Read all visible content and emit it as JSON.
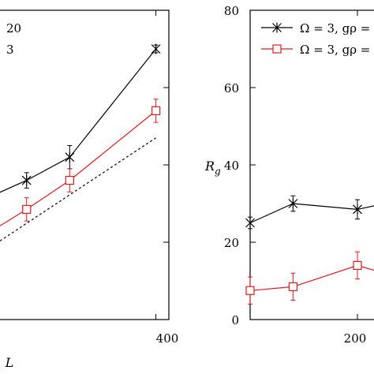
{
  "chart_data": [
    {
      "type": "line",
      "title": "",
      "xlabel": "L",
      "ylabel": "",
      "xlim": [
        20,
        430
      ],
      "ylim": [
        0,
        80
      ],
      "x_ticks": [
        {
          "value": 400,
          "label": "400"
        }
      ],
      "y_ticks": [],
      "grid": false,
      "legend_placement": "top-left",
      "legend_texts": [
        "20",
        "3"
      ],
      "series": [
        {
          "color": "#000000",
          "marker": "star",
          "x": [
            20,
            100,
            200,
            400
          ],
          "y": [
            32,
            36,
            42,
            70
          ],
          "err": [
            2,
            2,
            3,
            1
          ]
        },
        {
          "color": "#e41a1c",
          "marker": "square",
          "x": [
            20,
            100,
            200,
            400
          ],
          "y": [
            23,
            28.5,
            36,
            54
          ],
          "err": [
            2,
            3,
            3,
            3
          ]
        },
        {
          "color": "#000000",
          "style": "dashed",
          "x": [
            20,
            400
          ],
          "y": [
            19,
            47
          ]
        }
      ]
    },
    {
      "type": "line",
      "title": "",
      "xlabel": "",
      "ylabel": "R_g",
      "ylabel_main": "R",
      "ylabel_sub": "g",
      "xlim": [
        100,
        225
      ],
      "ylim": [
        0,
        80
      ],
      "x_ticks": [
        {
          "value": 200,
          "label": "200"
        }
      ],
      "y_ticks": [
        {
          "value": 0,
          "label": "0"
        },
        {
          "value": 20,
          "label": "20"
        },
        {
          "value": 40,
          "label": "40"
        },
        {
          "value": 60,
          "label": "60"
        },
        {
          "value": 80,
          "label": "80"
        }
      ],
      "grid": false,
      "legend_placement": "top-right",
      "legend_texts": [
        "Ω = 3, gρ =",
        "Ω = 3, gρ ="
      ],
      "series": [
        {
          "color": "#000000",
          "marker": "star",
          "x": [
            100,
            140,
            200,
            225
          ],
          "y": [
            25,
            30,
            28.5,
            30
          ],
          "err": [
            1.5,
            2,
            2.5,
            2
          ]
        },
        {
          "color": "#e41a1c",
          "marker": "square",
          "x": [
            100,
            140,
            200,
            225
          ],
          "y": [
            7.5,
            8.5,
            14,
            12
          ],
          "err": [
            3.5,
            3.5,
            3.5,
            3
          ]
        }
      ]
    }
  ]
}
